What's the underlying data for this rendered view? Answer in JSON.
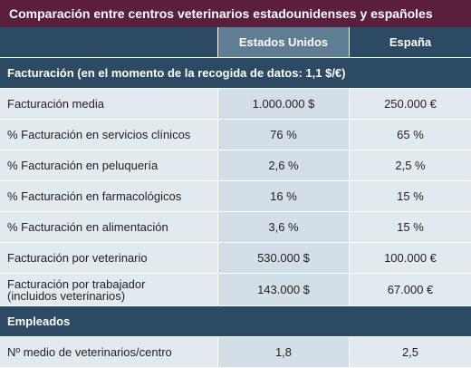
{
  "title": "Comparación entre centros veterinarios estadounidenses y españoles",
  "columns": [
    "Estados Unidos",
    "España"
  ],
  "sections": [
    {
      "title": "Facturación (en el momento de la recogida de datos: 1,1 $/€)",
      "rows": [
        [
          "Facturación media",
          "1.000.000 $",
          "250.000 €"
        ],
        [
          "% Facturación en servicios clínicos",
          "76 %",
          "65 %"
        ],
        [
          "% Facturación en peluquería",
          "2,6 %",
          "2,5 %"
        ],
        [
          "% Facturación en farmacológicos",
          "16 %",
          "15 %"
        ],
        [
          "% Facturación en alimentación",
          "3,6 %",
          "15 %"
        ],
        [
          "Facturación por veterinario",
          "530.000 $",
          "100.000 €"
        ],
        [
          "Facturación por trabajador\n(incluidos veterinarios)",
          "143.000 $",
          "67.000 €"
        ]
      ]
    },
    {
      "title": "Empleados",
      "rows": [
        [
          "Nº medio de veterinarios/centro",
          "1,8",
          "2,5"
        ]
      ]
    }
  ]
}
